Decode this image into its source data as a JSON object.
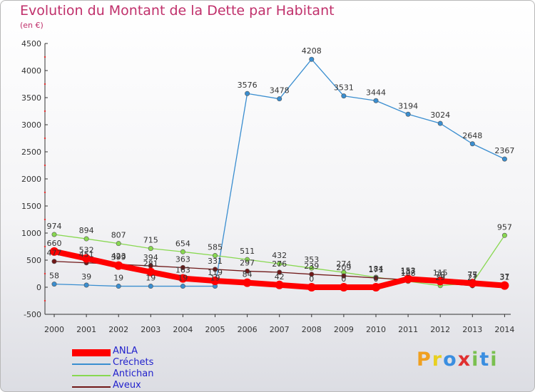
{
  "title": "Evolution du Montant de la Dette par Habitant",
  "subtitle": "(en €)",
  "logo": {
    "text": "Proxiti",
    "letters": [
      {
        "ch": "P",
        "color": "#f0a020"
      },
      {
        "ch": "r",
        "color": "#e8d020"
      },
      {
        "ch": "o",
        "color": "#3a8ee0"
      },
      {
        "ch": "x",
        "color": "#e03030"
      },
      {
        "ch": "i",
        "color": "#7ac050"
      },
      {
        "ch": "t",
        "color": "#3a8ee0"
      },
      {
        "ch": "i",
        "color": "#7ac050"
      }
    ]
  },
  "chart_data": {
    "type": "line",
    "categories": [
      "2000",
      "2001",
      "2002",
      "2003",
      "2004",
      "2005",
      "2006",
      "2007",
      "2008",
      "2009",
      "2010",
      "2011",
      "2012",
      "2013",
      "2014"
    ],
    "ylim": [
      -500,
      4500
    ],
    "yticks": [
      -500,
      0,
      500,
      1000,
      1500,
      2000,
      2500,
      3000,
      3500,
      4000,
      4500
    ],
    "grid": false,
    "legend_position": "bottom-left",
    "series": [
      {
        "name": "ANLA",
        "color": "#ff0000",
        "values": [
          660,
          532,
          399,
          281,
          163,
          119,
          84,
          42,
          0,
          0,
          0,
          153,
          115,
          75,
          31
        ],
        "labels": [
          "660",
          "532",
          "399",
          "281",
          "163",
          "119",
          "84",
          "42",
          "0",
          "0",
          "0",
          "153",
          "115",
          "75",
          "31"
        ]
      },
      {
        "name": "Créchets",
        "color": "#3a8ed0",
        "values": [
          58,
          39,
          19,
          19,
          19,
          19,
          3576,
          3478,
          4208,
          3531,
          3444,
          3194,
          3024,
          2648,
          2367
        ],
        "labels": [
          "58",
          "39",
          "19",
          "19",
          "19",
          "19",
          "3576",
          "3478",
          "4208",
          "3531",
          "3444",
          "3194",
          "3024",
          "2648",
          "2367"
        ]
      },
      {
        "name": "Antichan",
        "color": "#88d850",
        "values": [
          974,
          894,
          807,
          715,
          654,
          585,
          511,
          432,
          353,
          274,
          184,
          108,
          29,
          77,
          957
        ],
        "labels": [
          "974",
          "894",
          "807",
          "715",
          "654",
          "585",
          "511",
          "432",
          "353",
          "274",
          "184",
          "108",
          "29",
          "77",
          "957"
        ]
      },
      {
        "name": "Aveux",
        "color": "#701818",
        "values": [
          477,
          451,
          423,
          394,
          363,
          331,
          297,
          276,
          239,
          209,
          171,
          137,
          79,
          27,
          37
        ],
        "labels": [
          "477",
          "451",
          "423",
          "394",
          "363",
          "331",
          "297",
          "276",
          "239",
          "209",
          "171",
          "137",
          "79",
          "27",
          "37"
        ]
      }
    ]
  }
}
